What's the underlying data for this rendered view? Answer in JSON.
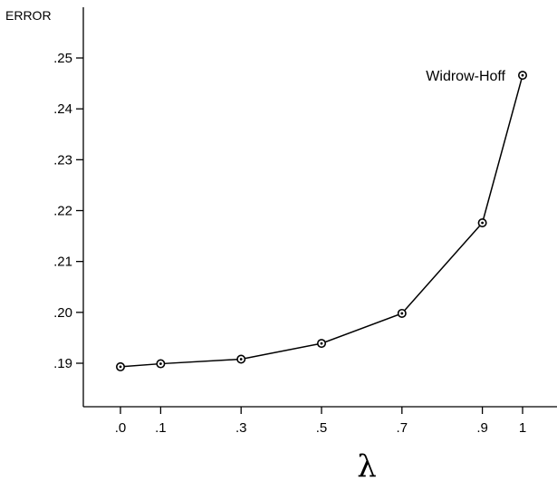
{
  "chart_data": {
    "type": "line",
    "title": "",
    "xlabel": "λ",
    "ylabel": "ERROR",
    "x": [
      0.0,
      0.1,
      0.3,
      0.5,
      0.7,
      0.9,
      1.0
    ],
    "x_tick_labels": [
      ".0",
      ".1",
      ".3",
      ".5",
      ".7",
      ".9",
      "1"
    ],
    "series": [
      {
        "values": [
          0.1893,
          0.1899,
          0.1908,
          0.1939,
          0.1998,
          0.2176,
          0.2466
        ]
      }
    ],
    "y_ticks": [
      0.19,
      0.2,
      0.21,
      0.22,
      0.23,
      0.24,
      0.25
    ],
    "y_tick_labels": [
      ".19",
      ".20",
      ".21",
      ".22",
      ".23",
      ".24",
      ".25"
    ],
    "ylim": [
      0.1813,
      0.2624
    ],
    "xlim": [
      -0.15,
      1.15
    ],
    "annotations": [
      {
        "text": "Widrow-Hoff",
        "x": 1.0,
        "y": 0.2466
      }
    ],
    "grid": false,
    "marker": "open-circle-with-dot",
    "line_color": "#000000"
  }
}
